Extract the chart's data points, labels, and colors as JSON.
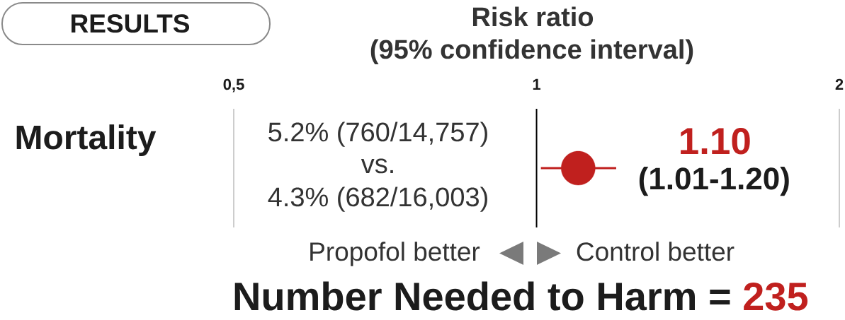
{
  "chart_data": {
    "type": "scatter",
    "orientation": "horizontal",
    "title": "Risk ratio",
    "subtitle": "(95% confidence interval)",
    "categories": [
      "Mortality"
    ],
    "values": [
      1.1
    ],
    "errors": [
      [
        1.01,
        1.2
      ]
    ],
    "value_labels": [
      "1.10"
    ],
    "color": "#c0201e",
    "marker": "circle",
    "xlim": [
      0.5,
      2
    ],
    "xticks": [
      {
        "value": 0.5,
        "label": "0,5"
      },
      1,
      2
    ],
    "log": "x",
    "ref_lines": [
      {
        "axis": "x",
        "value": 1,
        "color": "#000000"
      }
    ],
    "annotations": [
      "RESULTS",
      "5.2% (760/14,757)",
      "vs.",
      "4.3% (682/16,003)",
      "(1.01-1.20)",
      "Propofol better",
      "Control better",
      "Number Needed to Harm =",
      "235"
    ]
  }
}
